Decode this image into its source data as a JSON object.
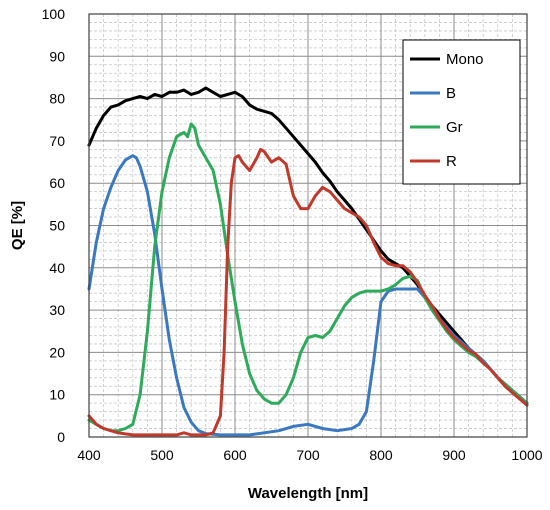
{
  "chart_data": {
    "type": "line",
    "title": "",
    "xlabel": "Wavelength [nm]",
    "ylabel": "QE [%]",
    "xlim": [
      400,
      1000
    ],
    "ylim": [
      0,
      100
    ],
    "x_ticks": [
      400,
      500,
      600,
      700,
      800,
      900,
      1000
    ],
    "y_ticks": [
      0,
      10,
      20,
      30,
      40,
      50,
      60,
      70,
      80,
      90,
      100
    ],
    "x_tick_labels": [
      "400",
      "500",
      "600",
      "700",
      "800",
      "900",
      "1000"
    ],
    "y_tick_labels": [
      "0",
      "10",
      "20",
      "30",
      "40",
      "50",
      "60",
      "70",
      "80",
      "90",
      "100"
    ],
    "grid": true,
    "legend_position": "top-right",
    "series": [
      {
        "name": "Mono",
        "color": "#000000",
        "points": [
          [
            400,
            69
          ],
          [
            410,
            73
          ],
          [
            420,
            76
          ],
          [
            430,
            78
          ],
          [
            440,
            78.5
          ],
          [
            450,
            79.5
          ],
          [
            460,
            80
          ],
          [
            470,
            80.5
          ],
          [
            480,
            80
          ],
          [
            490,
            81
          ],
          [
            500,
            80.5
          ],
          [
            510,
            81.5
          ],
          [
            520,
            81.5
          ],
          [
            530,
            82
          ],
          [
            540,
            81
          ],
          [
            550,
            81.5
          ],
          [
            560,
            82.5
          ],
          [
            570,
            81.5
          ],
          [
            580,
            80.5
          ],
          [
            590,
            81
          ],
          [
            600,
            81.5
          ],
          [
            610,
            80.5
          ],
          [
            620,
            78.5
          ],
          [
            630,
            77.5
          ],
          [
            640,
            77
          ],
          [
            650,
            76.5
          ],
          [
            660,
            75
          ],
          [
            670,
            73
          ],
          [
            680,
            71
          ],
          [
            690,
            69
          ],
          [
            700,
            67
          ],
          [
            710,
            65
          ],
          [
            720,
            62.5
          ],
          [
            730,
            60.5
          ],
          [
            740,
            58
          ],
          [
            750,
            56
          ],
          [
            760,
            54
          ],
          [
            770,
            51.5
          ],
          [
            780,
            49
          ],
          [
            790,
            46.5
          ],
          [
            800,
            44
          ],
          [
            810,
            42
          ],
          [
            820,
            41
          ],
          [
            830,
            40
          ],
          [
            840,
            38
          ],
          [
            850,
            36
          ],
          [
            860,
            33
          ],
          [
            870,
            31
          ],
          [
            880,
            29
          ],
          [
            890,
            27
          ],
          [
            900,
            25
          ],
          [
            910,
            23
          ],
          [
            920,
            21
          ],
          [
            930,
            19.5
          ],
          [
            940,
            18
          ],
          [
            950,
            16
          ],
          [
            960,
            14
          ],
          [
            970,
            12.5
          ],
          [
            980,
            11
          ],
          [
            990,
            9.5
          ],
          [
            1000,
            8
          ]
        ]
      },
      {
        "name": "B",
        "color": "#3a78c2",
        "points": [
          [
            400,
            35
          ],
          [
            410,
            46
          ],
          [
            420,
            54
          ],
          [
            430,
            59
          ],
          [
            440,
            63
          ],
          [
            450,
            65.5
          ],
          [
            460,
            66.5
          ],
          [
            465,
            66
          ],
          [
            470,
            64
          ],
          [
            480,
            58
          ],
          [
            490,
            48
          ],
          [
            500,
            35
          ],
          [
            510,
            23
          ],
          [
            520,
            14
          ],
          [
            530,
            7
          ],
          [
            540,
            3.5
          ],
          [
            550,
            1.5
          ],
          [
            560,
            0.8
          ],
          [
            580,
            0.5
          ],
          [
            600,
            0.5
          ],
          [
            620,
            0.5
          ],
          [
            640,
            1
          ],
          [
            660,
            1.5
          ],
          [
            680,
            2.5
          ],
          [
            700,
            3
          ],
          [
            720,
            2
          ],
          [
            740,
            1.5
          ],
          [
            760,
            2
          ],
          [
            770,
            3
          ],
          [
            780,
            6
          ],
          [
            790,
            18
          ],
          [
            800,
            32
          ],
          [
            810,
            34.5
          ],
          [
            820,
            35
          ],
          [
            830,
            35
          ],
          [
            840,
            35
          ],
          [
            850,
            35
          ],
          [
            860,
            33
          ],
          [
            870,
            31
          ],
          [
            880,
            28
          ],
          [
            890,
            26
          ],
          [
            900,
            24
          ],
          [
            910,
            22.5
          ],
          [
            920,
            21
          ],
          [
            930,
            19.5
          ],
          [
            940,
            18
          ],
          [
            950,
            16
          ],
          [
            960,
            14
          ],
          [
            970,
            12
          ],
          [
            980,
            10.5
          ],
          [
            990,
            9
          ],
          [
            1000,
            8
          ]
        ]
      },
      {
        "name": "Gr",
        "color": "#2eab5a",
        "points": [
          [
            400,
            4
          ],
          [
            410,
            3
          ],
          [
            420,
            2
          ],
          [
            430,
            1.5
          ],
          [
            440,
            1.5
          ],
          [
            450,
            2
          ],
          [
            460,
            3
          ],
          [
            470,
            10
          ],
          [
            480,
            25
          ],
          [
            490,
            45
          ],
          [
            500,
            58
          ],
          [
            510,
            66
          ],
          [
            520,
            71
          ],
          [
            530,
            72
          ],
          [
            535,
            71
          ],
          [
            540,
            74
          ],
          [
            545,
            73
          ],
          [
            550,
            69
          ],
          [
            560,
            66
          ],
          [
            570,
            63
          ],
          [
            580,
            55
          ],
          [
            590,
            43
          ],
          [
            600,
            32
          ],
          [
            610,
            22
          ],
          [
            620,
            15
          ],
          [
            630,
            11
          ],
          [
            640,
            9
          ],
          [
            650,
            8
          ],
          [
            660,
            8
          ],
          [
            670,
            10
          ],
          [
            680,
            14
          ],
          [
            690,
            20
          ],
          [
            700,
            23.5
          ],
          [
            710,
            24
          ],
          [
            720,
            23.5
          ],
          [
            730,
            25
          ],
          [
            740,
            28
          ],
          [
            750,
            31
          ],
          [
            760,
            33
          ],
          [
            770,
            34
          ],
          [
            780,
            34.5
          ],
          [
            790,
            34.5
          ],
          [
            800,
            34.5
          ],
          [
            810,
            35
          ],
          [
            820,
            36
          ],
          [
            830,
            37.5
          ],
          [
            840,
            38
          ],
          [
            850,
            37
          ],
          [
            860,
            33
          ],
          [
            870,
            30
          ],
          [
            880,
            27.5
          ],
          [
            890,
            25
          ],
          [
            900,
            23
          ],
          [
            910,
            21.5
          ],
          [
            920,
            20
          ],
          [
            930,
            19
          ],
          [
            940,
            17.5
          ],
          [
            950,
            16
          ],
          [
            960,
            14
          ],
          [
            970,
            12.5
          ],
          [
            980,
            11
          ],
          [
            990,
            9.5
          ],
          [
            1000,
            8
          ]
        ]
      },
      {
        "name": "R",
        "color": "#c0392b",
        "points": [
          [
            400,
            5
          ],
          [
            410,
            3
          ],
          [
            420,
            2
          ],
          [
            430,
            1.5
          ],
          [
            440,
            1
          ],
          [
            460,
            0.5
          ],
          [
            480,
            0.5
          ],
          [
            500,
            0.5
          ],
          [
            520,
            0.5
          ],
          [
            530,
            1
          ],
          [
            540,
            0.5
          ],
          [
            560,
            0.5
          ],
          [
            570,
            1
          ],
          [
            580,
            5
          ],
          [
            585,
            20
          ],
          [
            590,
            45
          ],
          [
            595,
            60
          ],
          [
            600,
            66
          ],
          [
            605,
            66.5
          ],
          [
            610,
            65
          ],
          [
            620,
            63
          ],
          [
            630,
            66
          ],
          [
            635,
            68
          ],
          [
            640,
            67.5
          ],
          [
            650,
            65
          ],
          [
            660,
            66
          ],
          [
            670,
            64.5
          ],
          [
            680,
            57
          ],
          [
            690,
            54
          ],
          [
            700,
            54
          ],
          [
            710,
            57
          ],
          [
            720,
            59
          ],
          [
            730,
            58
          ],
          [
            740,
            56
          ],
          [
            750,
            54
          ],
          [
            760,
            53
          ],
          [
            770,
            52
          ],
          [
            780,
            50
          ],
          [
            790,
            46
          ],
          [
            800,
            42.5
          ],
          [
            810,
            41
          ],
          [
            820,
            40.5
          ],
          [
            830,
            40.5
          ],
          [
            840,
            39
          ],
          [
            850,
            36.5
          ],
          [
            860,
            33.5
          ],
          [
            870,
            31
          ],
          [
            880,
            28
          ],
          [
            890,
            25.5
          ],
          [
            900,
            23.5
          ],
          [
            910,
            22
          ],
          [
            920,
            20.5
          ],
          [
            930,
            19.5
          ],
          [
            940,
            17.5
          ],
          [
            950,
            16
          ],
          [
            960,
            14
          ],
          [
            970,
            12
          ],
          [
            980,
            10.5
          ],
          [
            990,
            9
          ],
          [
            1000,
            7.5
          ]
        ]
      }
    ]
  }
}
